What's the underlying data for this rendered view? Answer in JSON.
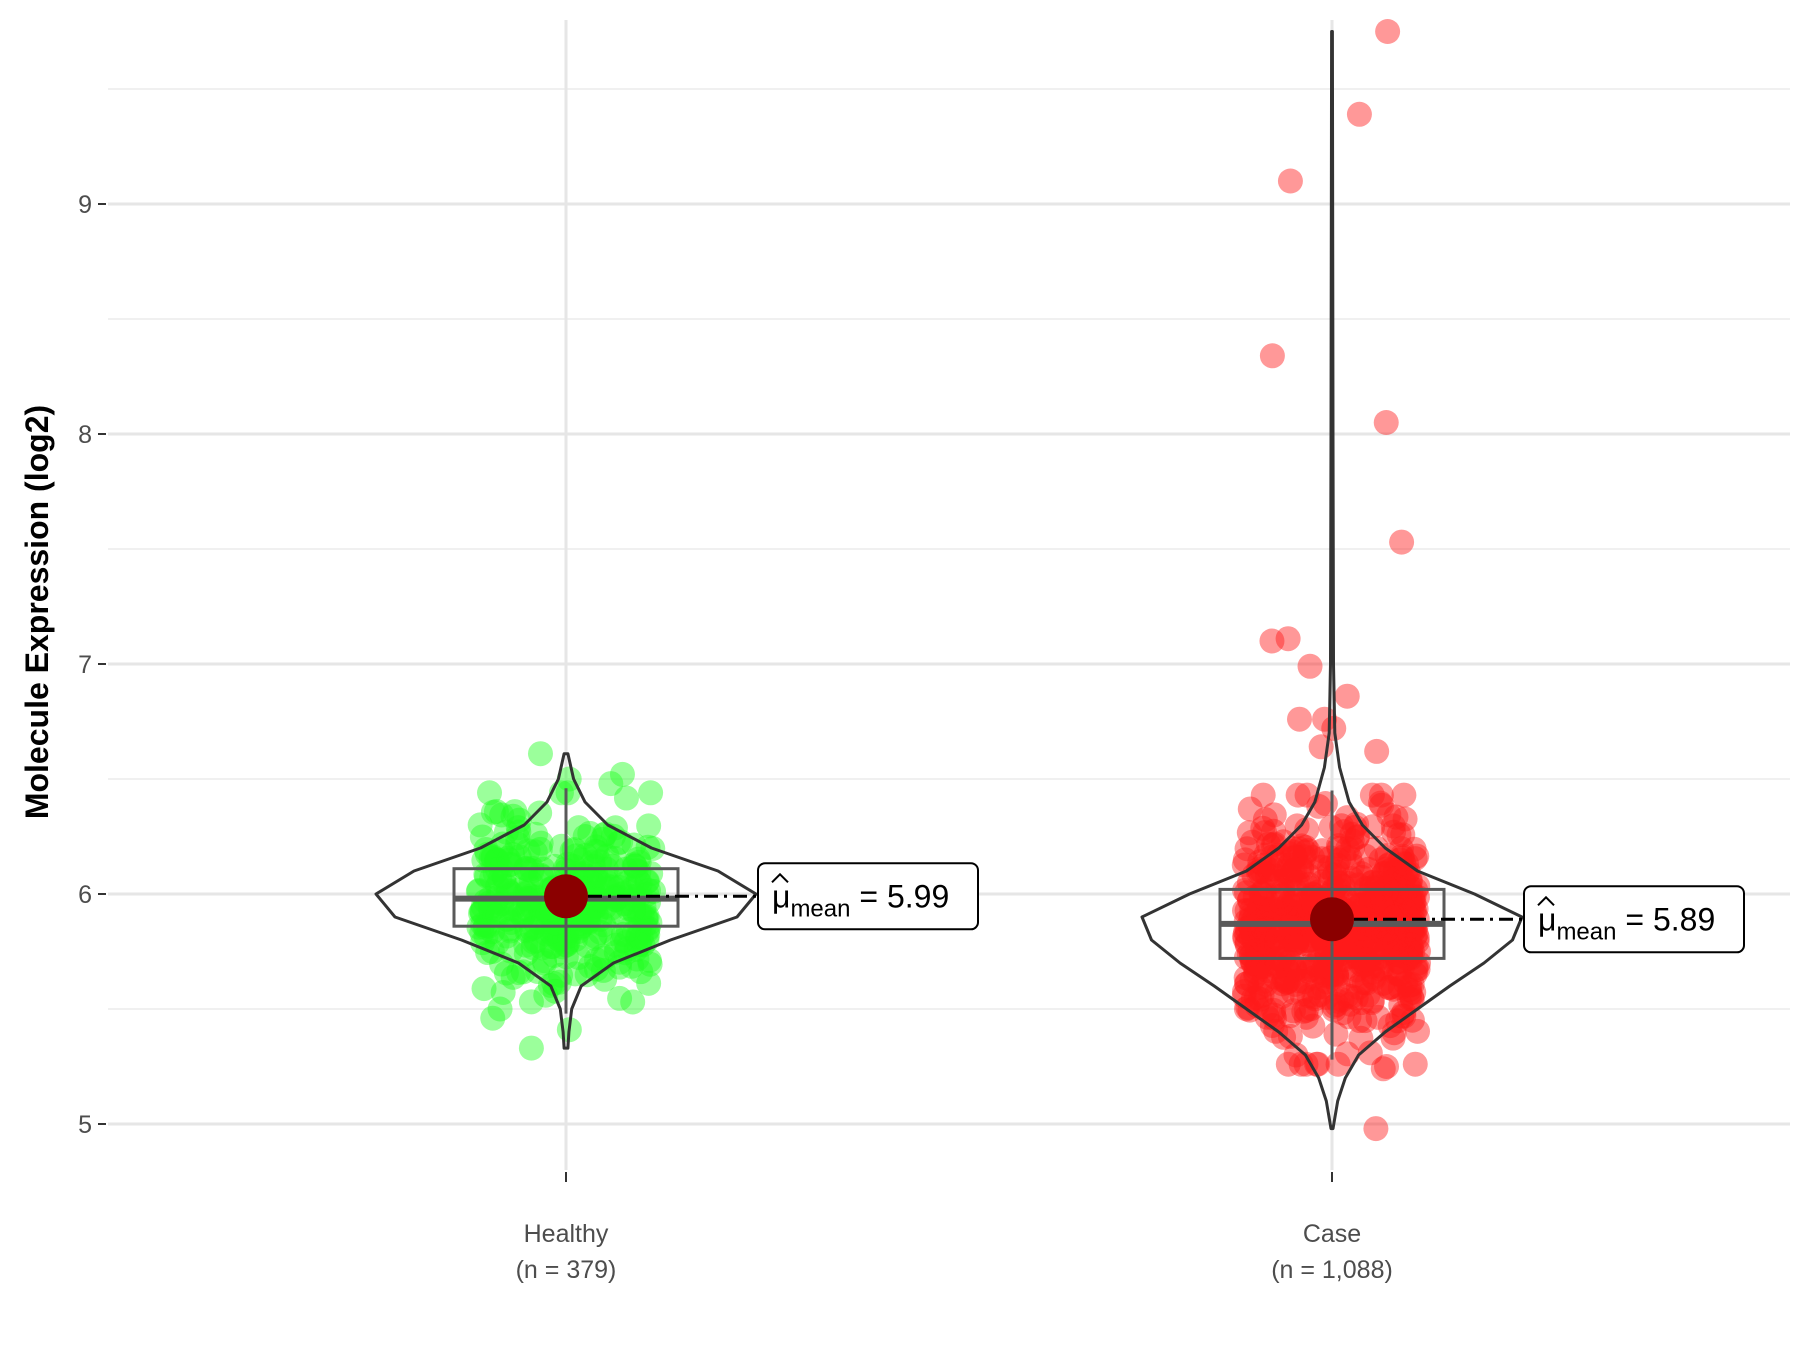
{
  "chart_data": {
    "type": "violin-box-scatter",
    "ylabel": "Molecule Expression (log2)",
    "xlabel": "",
    "ylim": [
      4.8,
      9.8
    ],
    "yticks": [
      5,
      6,
      7,
      8,
      9
    ],
    "grid": true,
    "groups": [
      {
        "name": "Healthy",
        "n_label": "(n = 379)",
        "n": 379,
        "color": "#22ff22",
        "mean": 5.99,
        "mean_label": "5.99",
        "box": {
          "q1": 5.86,
          "median": 5.98,
          "q3": 6.11,
          "whisker_low": 5.48,
          "whisker_high": 6.46
        },
        "violin": {
          "min": 5.33,
          "max": 6.61,
          "density": [
            [
              5.33,
              0.01
            ],
            [
              5.4,
              0.015
            ],
            [
              5.5,
              0.03
            ],
            [
              5.6,
              0.08
            ],
            [
              5.7,
              0.25
            ],
            [
              5.8,
              0.55
            ],
            [
              5.9,
              0.9
            ],
            [
              6.0,
              1.0
            ],
            [
              6.1,
              0.8
            ],
            [
              6.2,
              0.45
            ],
            [
              6.3,
              0.22
            ],
            [
              6.4,
              0.1
            ],
            [
              6.5,
              0.04
            ],
            [
              6.61,
              0.01
            ]
          ]
        },
        "outliers": [
          6.61,
          6.52,
          6.5,
          6.48,
          5.56,
          5.5,
          5.41,
          5.33
        ]
      },
      {
        "name": "Case",
        "n_label": "(n = 1,088)",
        "n": 1088,
        "color": "#ff1a1a",
        "mean": 5.89,
        "mean_label": "5.89",
        "box": {
          "q1": 5.72,
          "median": 5.87,
          "q3": 6.02,
          "whisker_low": 5.28,
          "whisker_high": 6.45
        },
        "violin": {
          "min": 4.98,
          "max": 9.75,
          "density": [
            [
              4.98,
              0.005
            ],
            [
              5.1,
              0.03
            ],
            [
              5.2,
              0.07
            ],
            [
              5.3,
              0.14
            ],
            [
              5.4,
              0.28
            ],
            [
              5.5,
              0.45
            ],
            [
              5.6,
              0.62
            ],
            [
              5.7,
              0.8
            ],
            [
              5.8,
              0.95
            ],
            [
              5.9,
              1.0
            ],
            [
              6.0,
              0.75
            ],
            [
              6.1,
              0.45
            ],
            [
              6.2,
              0.28
            ],
            [
              6.3,
              0.16
            ],
            [
              6.4,
              0.09
            ],
            [
              6.55,
              0.04
            ],
            [
              6.7,
              0.015
            ],
            [
              7.0,
              0.008
            ],
            [
              8.0,
              0.005
            ],
            [
              9.75,
              0.002
            ]
          ]
        },
        "outliers": [
          9.75,
          9.39,
          9.1,
          8.34,
          8.05,
          7.53,
          7.11,
          7.1,
          6.99,
          6.86,
          6.76,
          6.76,
          6.72,
          6.64,
          6.62,
          5.3,
          5.25,
          5.24,
          4.98
        ]
      }
    ]
  }
}
